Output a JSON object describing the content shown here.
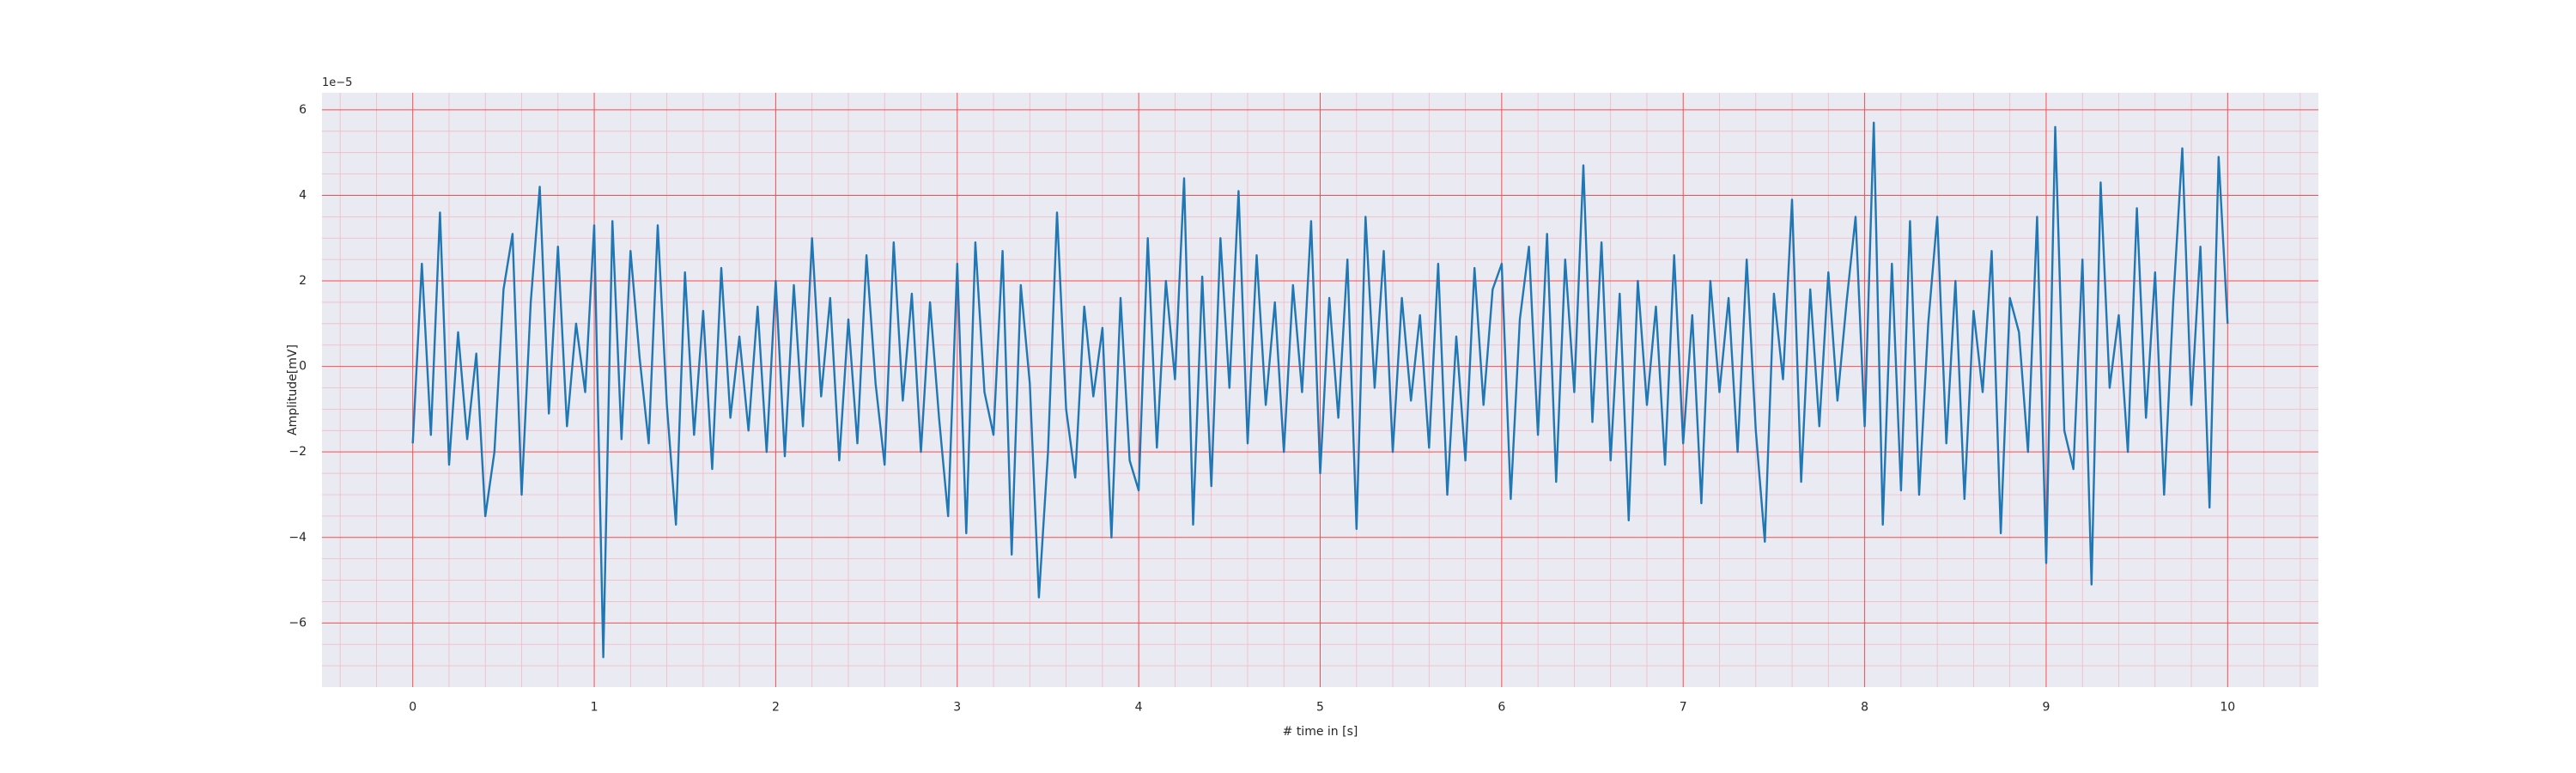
{
  "chart_data": {
    "type": "line",
    "title": "",
    "xlabel": "# time in [s]",
    "ylabel": "Amplitude[mV]",
    "y_offset_text": "1e−5",
    "xlim": [
      -0.5,
      10.5
    ],
    "ylim": [
      -7.5,
      6.4
    ],
    "y_scale_factor": 1e-05,
    "x_ticks": [
      0,
      1,
      2,
      3,
      4,
      5,
      6,
      7,
      8,
      9,
      10
    ],
    "x_tick_labels": [
      "0",
      "1",
      "2",
      "3",
      "4",
      "5",
      "6",
      "7",
      "8",
      "9",
      "10"
    ],
    "y_ticks": [
      -6,
      -4,
      -2,
      0,
      2,
      4,
      6
    ],
    "y_tick_labels": [
      "−6",
      "−4",
      "−2",
      "0",
      "2",
      "4",
      "6"
    ],
    "grid": "major and minor, red",
    "colors": {
      "plot_background": "#eaeaf2",
      "major_grid": "#ff4b4b",
      "minor_grid": "#f4b8c4",
      "line": "#1f77b4"
    },
    "series": [
      {
        "x": [
          0,
          0.05,
          0.1,
          0.15,
          0.2,
          0.25,
          0.3,
          0.35,
          0.4,
          0.45,
          0.5,
          0.55,
          0.6,
          0.65,
          0.7,
          0.75,
          0.8,
          0.85,
          0.9,
          0.95,
          1.0,
          1.05,
          1.1,
          1.15,
          1.2,
          1.25,
          1.3,
          1.35,
          1.4,
          1.45,
          1.5,
          1.55,
          1.6,
          1.65,
          1.7,
          1.75,
          1.8,
          1.85,
          1.9,
          1.95,
          2.0,
          2.05,
          2.1,
          2.15,
          2.2,
          2.25,
          2.3,
          2.35,
          2.4,
          2.45,
          2.5,
          2.55,
          2.6,
          2.65,
          2.7,
          2.75,
          2.8,
          2.85,
          2.9,
          2.95,
          3.0,
          3.05,
          3.1,
          3.15,
          3.2,
          3.25,
          3.3,
          3.35,
          3.4,
          3.45,
          3.5,
          3.55,
          3.6,
          3.65,
          3.7,
          3.75,
          3.8,
          3.85,
          3.9,
          3.95,
          4.0,
          4.05,
          4.1,
          4.15,
          4.2,
          4.25,
          4.3,
          4.35,
          4.4,
          4.45,
          4.5,
          4.55,
          4.6,
          4.65,
          4.7,
          4.75,
          4.8,
          4.85,
          4.9,
          4.95,
          5.0,
          5.05,
          5.1,
          5.15,
          5.2,
          5.25,
          5.3,
          5.35,
          5.4,
          5.45,
          5.5,
          5.55,
          5.6,
          5.65,
          5.7,
          5.75,
          5.8,
          5.85,
          5.9,
          5.95,
          6.0,
          6.05,
          6.1,
          6.15,
          6.2,
          6.25,
          6.3,
          6.35,
          6.4,
          6.45,
          6.5,
          6.55,
          6.6,
          6.65,
          6.7,
          6.75,
          6.8,
          6.85,
          6.9,
          6.95,
          7.0,
          7.05,
          7.1,
          7.15,
          7.2,
          7.25,
          7.3,
          7.35,
          7.4,
          7.45,
          7.5,
          7.55,
          7.6,
          7.65,
          7.7,
          7.75,
          7.8,
          7.85,
          7.9,
          7.95,
          8.0,
          8.05,
          8.1,
          8.15,
          8.2,
          8.25,
          8.3,
          8.35,
          8.4,
          8.45,
          8.5,
          8.55,
          8.6,
          8.65,
          8.7,
          8.75,
          8.8,
          8.85,
          8.9,
          8.95,
          9.0,
          9.05,
          9.1,
          9.15,
          9.2,
          9.25,
          9.3,
          9.35,
          9.4,
          9.45,
          9.5,
          9.55,
          9.6,
          9.65,
          9.7,
          9.75,
          9.8,
          9.85,
          9.9,
          9.95,
          10.0
        ],
        "y": [
          -1.8,
          2.4,
          -1.6,
          3.6,
          -2.3,
          0.8,
          -1.7,
          0.3,
          -3.5,
          -2.0,
          1.8,
          3.1,
          -3.0,
          1.5,
          4.2,
          -1.1,
          2.8,
          -1.4,
          1.0,
          -0.6,
          3.3,
          -6.8,
          3.4,
          -1.7,
          2.7,
          0.2,
          -1.8,
          3.3,
          -0.9,
          -3.7,
          2.2,
          -1.6,
          1.3,
          -2.4,
          2.3,
          -1.2,
          0.7,
          -1.5,
          1.4,
          -2.0,
          2.0,
          -2.1,
          1.9,
          -1.4,
          3.0,
          -0.7,
          1.6,
          -2.2,
          1.1,
          -1.8,
          2.6,
          -0.4,
          -2.3,
          2.9,
          -0.8,
          1.7,
          -2.0,
          1.5,
          -1.2,
          -3.5,
          2.4,
          -3.9,
          2.9,
          -0.6,
          -1.6,
          2.7,
          -4.4,
          1.9,
          -0.4,
          -5.4,
          -2.0,
          3.6,
          -1.0,
          -2.6,
          1.4,
          -0.7,
          0.9,
          -4.0,
          1.6,
          -2.2,
          -2.9,
          3.0,
          -1.9,
          2.0,
          -0.3,
          4.4,
          -3.7,
          2.1,
          -2.8,
          3.0,
          -0.5,
          4.1,
          -1.8,
          2.6,
          -0.9,
          1.5,
          -2.0,
          1.9,
          -0.6,
          3.4,
          -2.5,
          1.6,
          -1.2,
          2.5,
          -3.8,
          3.5,
          -0.5,
          2.7,
          -2.0,
          1.6,
          -0.8,
          1.2,
          -1.9,
          2.4,
          -3.0,
          0.7,
          -2.2,
          2.3,
          -0.9,
          1.8,
          2.4,
          -3.1,
          1.1,
          2.8,
          -1.6,
          3.1,
          -2.7,
          2.5,
          -0.6,
          4.7,
          -1.3,
          2.9,
          -2.2,
          1.7,
          -3.6,
          2.0,
          -0.9,
          1.4,
          -2.3,
          2.6,
          -1.8,
          1.2,
          -3.2,
          2.0,
          -0.6,
          1.6,
          -2.0,
          2.5,
          -1.5,
          -4.1,
          1.7,
          -0.3,
          3.9,
          -2.7,
          1.8,
          -1.4,
          2.2,
          -0.8,
          1.5,
          3.5,
          -1.4,
          5.7,
          -3.7,
          2.4,
          -2.9,
          3.4,
          -3.0,
          1.0,
          3.5,
          -1.8,
          2.0,
          -3.1,
          1.3,
          -0.6,
          2.7,
          -3.9,
          1.6,
          0.8,
          -2.0,
          3.5,
          -4.6,
          5.6,
          -1.5,
          -2.4,
          2.5,
          -5.1,
          4.3,
          -0.5,
          1.2,
          -2.0,
          3.7,
          -1.2,
          2.2,
          -3.0,
          1.5,
          5.1,
          -0.9,
          2.8,
          -3.3,
          4.9,
          1.0
        ]
      }
    ]
  }
}
